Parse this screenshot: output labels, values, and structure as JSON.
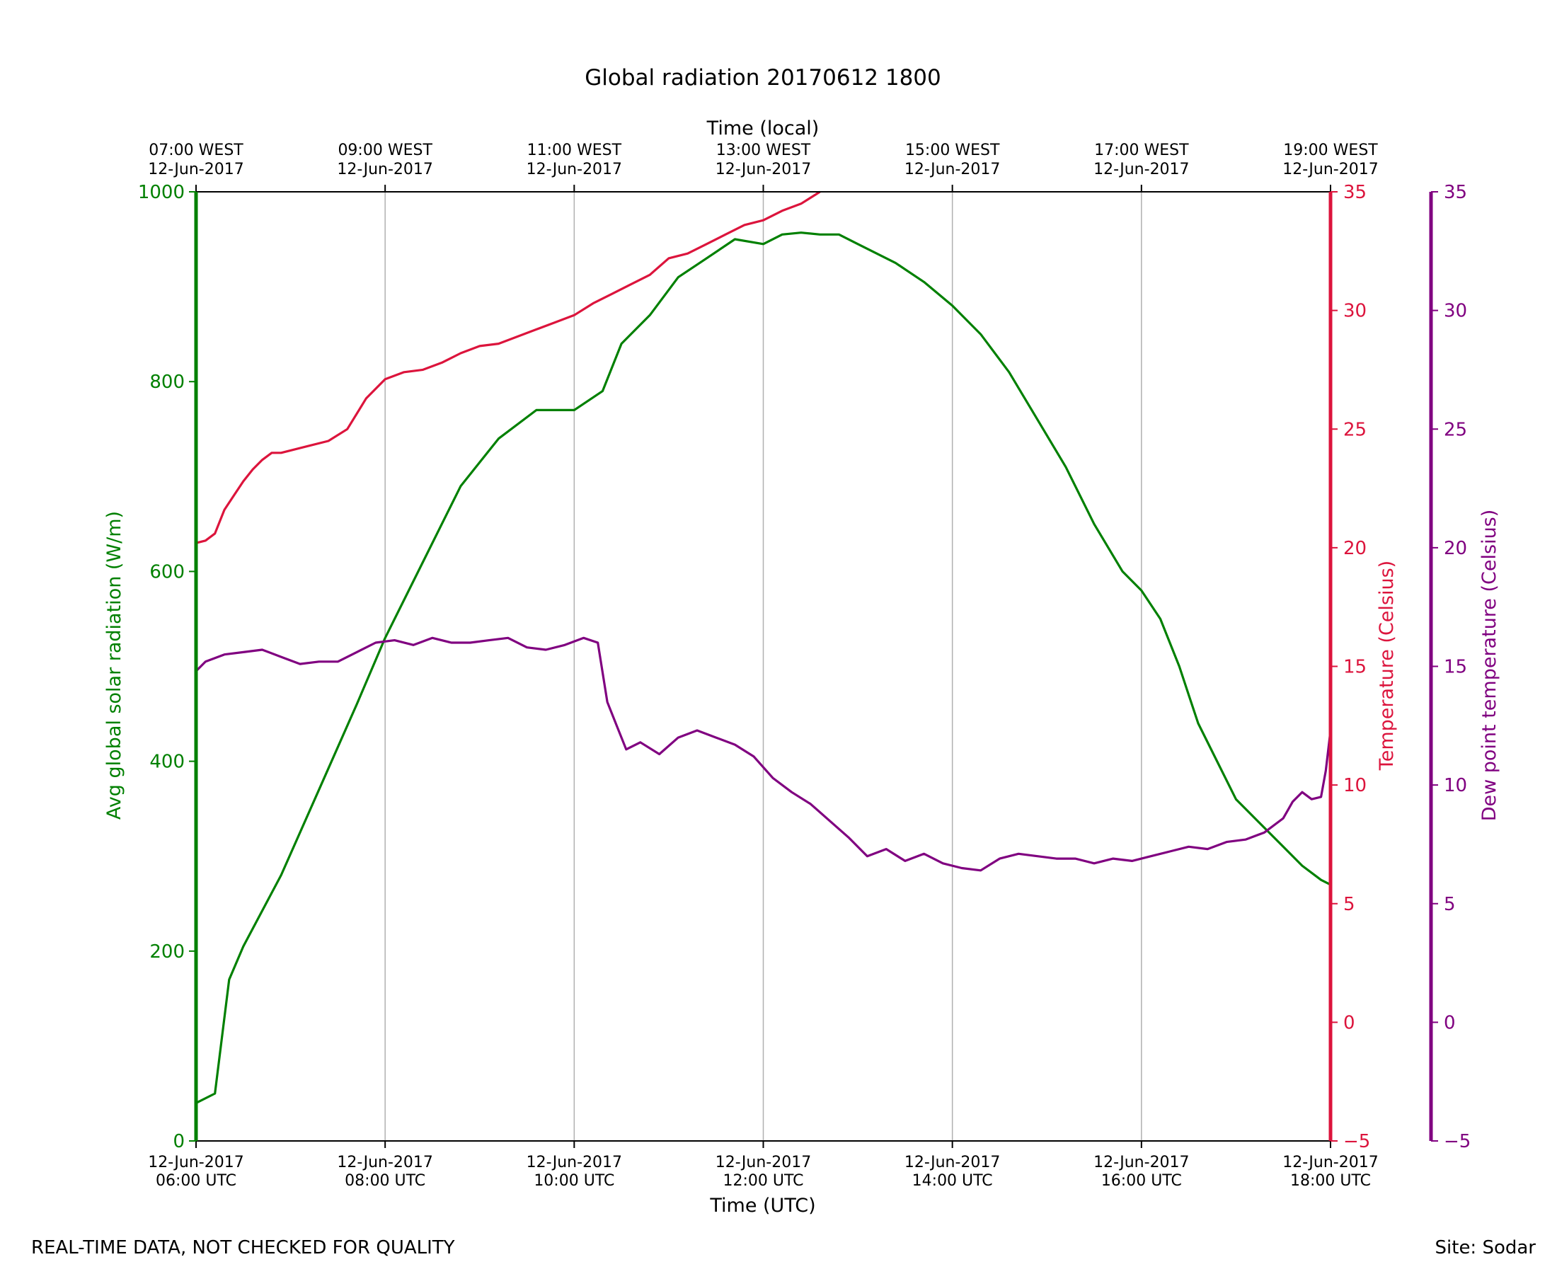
{
  "chart_data": {
    "type": "line",
    "title": "Global radiation 20170612 1800",
    "xlabel": "Time (UTC)",
    "x2label": "Time (local)",
    "ylabel": "Avg global solar radiation (W/m)",
    "y2label": "Temperature (Celsius)",
    "y3label": "Dew point temperature (Celsius)",
    "xlim_hours": [
      6,
      18
    ],
    "ylim": [
      0,
      1000
    ],
    "y2lim": [
      -5,
      35
    ],
    "y3lim": [
      -5,
      35
    ],
    "grid": "vertical",
    "x_ticks": [
      {
        "hour": 6,
        "date": "12-Jun-2017",
        "time": "06:00 UTC"
      },
      {
        "hour": 8,
        "date": "12-Jun-2017",
        "time": "08:00 UTC"
      },
      {
        "hour": 10,
        "date": "12-Jun-2017",
        "time": "10:00 UTC"
      },
      {
        "hour": 12,
        "date": "12-Jun-2017",
        "time": "12:00 UTC"
      },
      {
        "hour": 14,
        "date": "12-Jun-2017",
        "time": "14:00 UTC"
      },
      {
        "hour": 16,
        "date": "12-Jun-2017",
        "time": "16:00 UTC"
      },
      {
        "hour": 18,
        "date": "12-Jun-2017",
        "time": "18:00 UTC"
      }
    ],
    "x2_ticks": [
      {
        "hour": 6,
        "time": "07:00 WEST",
        "date": "12-Jun-2017"
      },
      {
        "hour": 8,
        "time": "09:00 WEST",
        "date": "12-Jun-2017"
      },
      {
        "hour": 10,
        "time": "11:00 WEST",
        "date": "12-Jun-2017"
      },
      {
        "hour": 12,
        "time": "13:00 WEST",
        "date": "12-Jun-2017"
      },
      {
        "hour": 14,
        "time": "15:00 WEST",
        "date": "12-Jun-2017"
      },
      {
        "hour": 16,
        "time": "17:00 WEST",
        "date": "12-Jun-2017"
      },
      {
        "hour": 18,
        "time": "19:00 WEST",
        "date": "12-Jun-2017"
      }
    ],
    "y_ticks": [
      "0",
      "200",
      "400",
      "600",
      "800",
      "1000"
    ],
    "y2_ticks": [
      "−5",
      "0",
      "5",
      "10",
      "15",
      "20",
      "25",
      "30",
      "35"
    ],
    "y3_ticks": [
      "−5",
      "0",
      "5",
      "10",
      "15",
      "20",
      "25",
      "30",
      "35"
    ],
    "series": [
      {
        "name": "Avg global solar radiation",
        "axis": "left",
        "color": "#008000",
        "x": [
          6.0,
          6.2,
          6.35,
          6.5,
          6.9,
          7.3,
          7.7,
          8.0,
          8.4,
          8.8,
          9.2,
          9.6,
          10.0,
          10.3,
          10.5,
          10.8,
          11.1,
          11.4,
          11.7,
          12.0,
          12.2,
          12.4,
          12.6,
          12.8,
          13.0,
          13.2,
          13.4,
          13.7,
          14.0,
          14.3,
          14.6,
          14.9,
          15.2,
          15.5,
          15.8,
          16.0,
          16.2,
          16.4,
          16.5,
          16.6,
          16.8,
          17.0,
          17.3,
          17.5,
          17.7,
          17.9,
          18.0
        ],
        "values": [
          40,
          50,
          170,
          205,
          280,
          370,
          460,
          530,
          610,
          690,
          740,
          770,
          770,
          790,
          840,
          870,
          910,
          930,
          950,
          945,
          955,
          957,
          955,
          955,
          945,
          935,
          925,
          905,
          880,
          850,
          810,
          760,
          710,
          650,
          600,
          580,
          550,
          500,
          470,
          440,
          400,
          360,
          330,
          310,
          290,
          275,
          270
        ]
      },
      {
        "name": "Temperature",
        "axis": "right",
        "color": "#dc143c",
        "x": [
          6.0,
          6.1,
          6.2,
          6.3,
          6.4,
          6.5,
          6.6,
          6.7,
          6.8,
          6.9,
          7.0,
          7.2,
          7.4,
          7.6,
          7.8,
          8.0,
          8.2,
          8.4,
          8.6,
          8.8,
          9.0,
          9.2,
          9.4,
          9.6,
          9.8,
          10.0,
          10.2,
          10.4,
          10.6,
          10.8,
          11.0,
          11.2,
          11.4,
          11.6,
          11.8,
          12.0,
          12.2,
          12.4,
          12.6
        ],
        "values": [
          20.2,
          20.3,
          20.6,
          21.6,
          22.2,
          22.8,
          23.3,
          23.7,
          24.0,
          24.0,
          24.1,
          24.3,
          24.5,
          25.0,
          26.3,
          27.1,
          27.4,
          27.5,
          27.8,
          28.2,
          28.5,
          28.6,
          28.9,
          29.2,
          29.5,
          29.8,
          30.3,
          30.7,
          31.1,
          31.5,
          32.2,
          32.4,
          32.8,
          33.2,
          33.6,
          33.8,
          34.2,
          34.5,
          35.0
        ]
      },
      {
        "name": "Dew point temperature",
        "axis": "right-outer",
        "color": "#800080",
        "x": [
          6.0,
          6.1,
          6.3,
          6.5,
          6.7,
          6.9,
          7.1,
          7.3,
          7.5,
          7.7,
          7.9,
          8.1,
          8.3,
          8.5,
          8.7,
          8.9,
          9.1,
          9.3,
          9.5,
          9.7,
          9.9,
          10.1,
          10.25,
          10.35,
          10.45,
          10.55,
          10.7,
          10.9,
          11.1,
          11.3,
          11.5,
          11.7,
          11.9,
          12.1,
          12.3,
          12.5,
          12.7,
          12.9,
          13.1,
          13.3,
          13.5,
          13.7,
          13.9,
          14.1,
          14.3,
          14.5,
          14.7,
          14.9,
          15.1,
          15.3,
          15.5,
          15.7,
          15.9,
          16.1,
          16.3,
          16.5,
          16.7,
          16.9,
          17.1,
          17.3,
          17.5,
          17.6,
          17.7,
          17.8,
          17.9,
          17.95,
          18.0
        ],
        "values": [
          14.8,
          15.2,
          15.5,
          15.6,
          15.7,
          15.4,
          15.1,
          15.2,
          15.2,
          15.6,
          16.0,
          16.1,
          15.9,
          16.2,
          16.0,
          16.0,
          16.1,
          16.2,
          15.8,
          15.7,
          15.9,
          16.2,
          16.0,
          13.5,
          12.5,
          11.5,
          11.8,
          11.3,
          12.0,
          12.3,
          12.0,
          11.7,
          11.2,
          10.3,
          9.7,
          9.2,
          8.5,
          7.8,
          7.0,
          7.3,
          6.8,
          7.1,
          6.7,
          6.5,
          6.4,
          6.9,
          7.1,
          7.0,
          6.9,
          6.9,
          6.7,
          6.9,
          6.8,
          7.0,
          7.2,
          7.4,
          7.3,
          7.6,
          7.7,
          8.0,
          8.6,
          9.3,
          9.7,
          9.4,
          9.5,
          10.6,
          12.3
        ]
      }
    ]
  },
  "footer": {
    "left": "REAL-TIME DATA, NOT CHECKED FOR QUALITY",
    "right": "Site: Sodar"
  },
  "colors": {
    "radiation": "#008000",
    "temperature": "#dc143c",
    "dewpoint": "#800080",
    "grid": "#b0b0b0"
  }
}
